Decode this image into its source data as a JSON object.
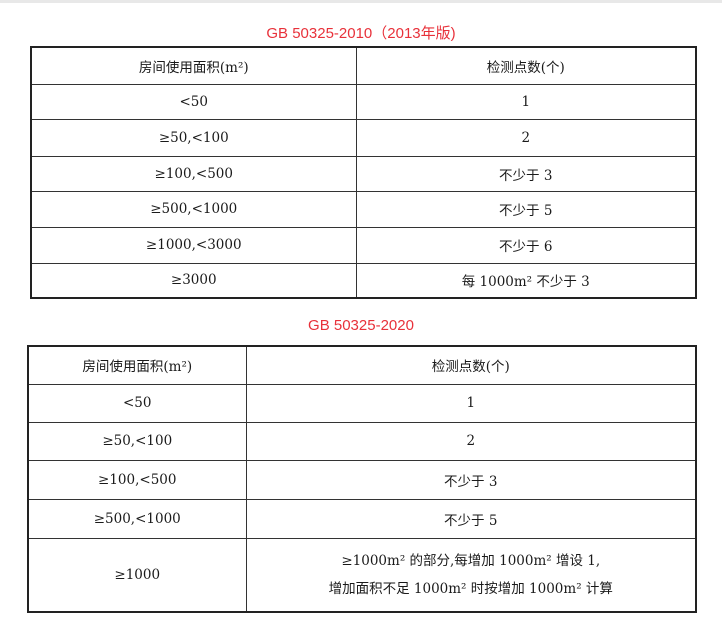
{
  "table1": {
    "title": "GB 50325-2010（2013年版)",
    "headers": [
      "房间使用面积(m²)",
      "检测点数(个)"
    ],
    "rows": [
      [
        "<50",
        "1"
      ],
      [
        "≥50,<100",
        "2"
      ],
      [
        "≥100,<500",
        "不少于 3"
      ],
      [
        "≥500,<1000",
        "不少于 5"
      ],
      [
        "≥1000,<3000",
        "不少于 6"
      ],
      [
        "≥3000",
        "每 1000m² 不少于 3"
      ]
    ]
  },
  "table2": {
    "title": "GB 50325-2020",
    "headers": [
      "房间使用面积(m²)",
      "检测点数(个)"
    ],
    "rows": [
      [
        "<50",
        "1"
      ],
      [
        "≥50,<100",
        "2"
      ],
      [
        "≥100,<500",
        "不少于 3"
      ],
      [
        "≥500,<1000",
        "不少于 5"
      ]
    ],
    "last_row": {
      "area": "≥1000",
      "points_line1": "≥1000m² 的部分,每增加 1000m² 增设 1,",
      "points_line2": "增加面积不足 1000m² 时按增加 1000m² 计算"
    },
    "title_color": "#e8313a"
  }
}
